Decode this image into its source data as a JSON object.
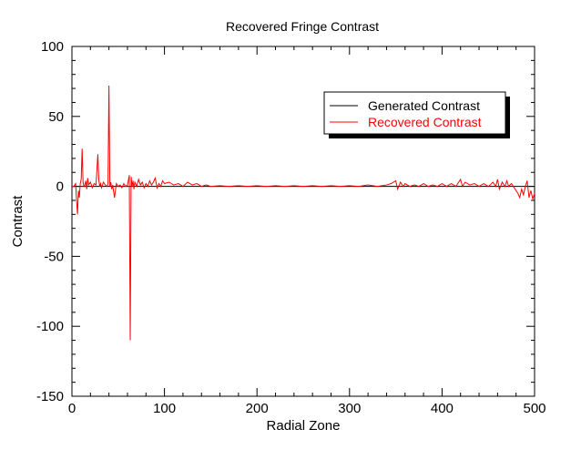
{
  "chart_data": {
    "type": "line",
    "title": "Recovered Fringe Contrast",
    "xlabel": "Radial Zone",
    "ylabel": "Contrast",
    "xlim": [
      0,
      500
    ],
    "ylim": [
      -150,
      100
    ],
    "xticks": [
      0,
      100,
      200,
      300,
      400,
      500
    ],
    "xtick_labels": [
      "0",
      "100",
      "200",
      "300",
      "400",
      "500"
    ],
    "yticks": [
      -150,
      -100,
      -50,
      0,
      50,
      100
    ],
    "ytick_labels": [
      "-150",
      "-100",
      "-50",
      "0",
      "50",
      "100"
    ],
    "grid": false,
    "legend_position": "top-right",
    "series": [
      {
        "name": "Generated Contrast",
        "color": "#000000",
        "x": [
          0,
          100,
          200,
          300,
          400,
          500
        ],
        "y": [
          0,
          0,
          0,
          0,
          0,
          0
        ]
      },
      {
        "name": "Recovered Contrast",
        "color": "#ff0000",
        "x": [
          0,
          2,
          4,
          5,
          6,
          7,
          8,
          9,
          10,
          11,
          12,
          13,
          14,
          15,
          16,
          17,
          18,
          20,
          22,
          24,
          26,
          28,
          29,
          30,
          31,
          32,
          34,
          36,
          38,
          39,
          40,
          41,
          42,
          43,
          44,
          46,
          48,
          50,
          52,
          54,
          56,
          58,
          60,
          62,
          63,
          64,
          65,
          66,
          67,
          68,
          70,
          72,
          74,
          76,
          78,
          80,
          82,
          84,
          86,
          88,
          90,
          92,
          94,
          96,
          98,
          100,
          105,
          110,
          115,
          120,
          125,
          130,
          135,
          140,
          145,
          150,
          160,
          170,
          180,
          190,
          200,
          210,
          220,
          230,
          240,
          250,
          260,
          270,
          280,
          290,
          300,
          310,
          320,
          330,
          340,
          345,
          350,
          352,
          355,
          358,
          360,
          365,
          370,
          375,
          380,
          385,
          390,
          395,
          400,
          405,
          410,
          415,
          418,
          420,
          422,
          425,
          430,
          435,
          440,
          445,
          450,
          452,
          455,
          458,
          460,
          462,
          465,
          468,
          470,
          472,
          475,
          478,
          480,
          482,
          484,
          486,
          488,
          490,
          492,
          494,
          496,
          498,
          500
        ],
        "y": [
          0,
          0,
          2,
          -10,
          -20,
          -3,
          -8,
          2,
          5,
          27,
          3,
          0,
          1,
          4,
          -2,
          6,
          1,
          3,
          -1,
          2,
          1,
          23,
          5,
          0,
          2,
          -1,
          3,
          1,
          0,
          2,
          72,
          0,
          3,
          -2,
          1,
          -8,
          2,
          0,
          1,
          -1,
          2,
          0,
          1,
          8,
          -110,
          7,
          0,
          4,
          -2,
          3,
          0,
          5,
          1,
          3,
          -1,
          2,
          0,
          4,
          1,
          3,
          6,
          -1,
          2,
          0,
          4,
          2,
          3,
          1,
          2,
          0,
          3,
          1,
          2,
          0,
          1,
          0,
          0.5,
          0,
          0.5,
          0,
          0.5,
          0,
          0.5,
          0,
          0.5,
          0,
          0.5,
          0,
          0.5,
          0,
          0.5,
          0,
          1,
          0,
          1,
          2,
          4,
          -2,
          3,
          0,
          2,
          0,
          1,
          0,
          2,
          0,
          1,
          0,
          2,
          0,
          2,
          0,
          3,
          5,
          0,
          3,
          1,
          2,
          0,
          2,
          0,
          1,
          3,
          0,
          5,
          -2,
          3,
          0,
          4,
          0,
          2,
          -1,
          -3,
          -5,
          -8,
          -2,
          -6,
          0,
          4,
          -8,
          -3,
          -9,
          -5
        ]
      }
    ]
  }
}
